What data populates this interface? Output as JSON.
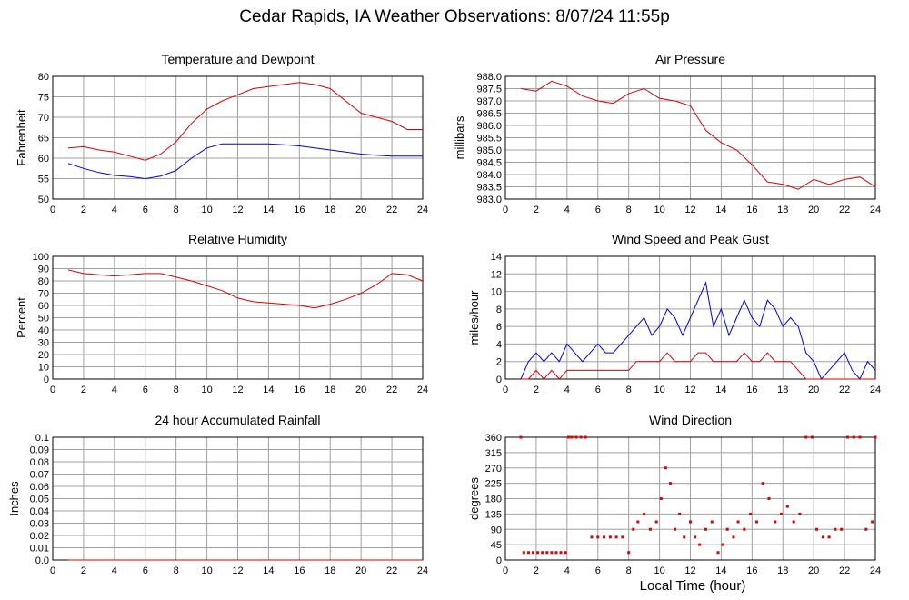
{
  "title": "Cedar Rapids, IA Weather Observations: 8/07/24 11:55p",
  "x_axis_label": "Local Time (hour)",
  "chart_data": [
    {
      "id": "temp",
      "type": "line",
      "title": "Temperature and Dewpoint",
      "ylabel": "Fahrenheit",
      "xlim": [
        0,
        24
      ],
      "ylim": [
        50,
        80
      ],
      "x_ticks": [
        0,
        2,
        4,
        6,
        8,
        10,
        12,
        14,
        16,
        18,
        20,
        22,
        24
      ],
      "y_ticks": [
        50,
        55,
        60,
        65,
        70,
        75,
        80
      ],
      "y_tick_labels": [
        "50",
        "55",
        "60",
        "65",
        "70",
        "75",
        "80"
      ],
      "grid": true,
      "series": [
        {
          "color": "#e00000",
          "x": [
            1,
            2,
            3,
            4,
            5,
            6,
            7,
            8,
            9,
            10,
            11,
            12,
            13,
            14,
            15,
            16,
            17,
            18,
            19,
            20,
            21,
            22,
            23,
            24
          ],
          "values": [
            62.5,
            62.8,
            62,
            61.5,
            60.5,
            59.5,
            61,
            64,
            68.5,
            72,
            74,
            75.5,
            77,
            77.5,
            78,
            78.5,
            78,
            77,
            74,
            71,
            70,
            69,
            67,
            67
          ]
        },
        {
          "color": "#0000e0",
          "x": [
            1,
            2,
            3,
            4,
            5,
            6,
            7,
            8,
            9,
            10,
            11,
            12,
            13,
            14,
            15,
            16,
            17,
            18,
            19,
            20,
            21,
            22,
            23,
            24
          ],
          "values": [
            58.7,
            57.5,
            56.5,
            55.8,
            55.5,
            55,
            55.6,
            57,
            60,
            62.5,
            63.5,
            63.5,
            63.5,
            63.5,
            63.3,
            63,
            62.5,
            62,
            61.5,
            61,
            60.7,
            60.5,
            60.5,
            60.5
          ]
        }
      ]
    },
    {
      "id": "pressure",
      "type": "line",
      "title": "Air Pressure",
      "ylabel": "millibars",
      "xlim": [
        0,
        24
      ],
      "ylim": [
        983.0,
        988.0
      ],
      "x_ticks": [
        0,
        2,
        4,
        6,
        8,
        10,
        12,
        14,
        16,
        18,
        20,
        22,
        24
      ],
      "y_ticks": [
        983.0,
        983.5,
        984.0,
        984.5,
        985.0,
        985.5,
        986.0,
        986.5,
        987.0,
        987.5,
        988.0
      ],
      "y_tick_labels": [
        "983.0",
        "983.5",
        "984.0",
        "984.5",
        "985.0",
        "985.5",
        "986.0",
        "986.5",
        "987.0",
        "987.5",
        "988.0"
      ],
      "grid": true,
      "series": [
        {
          "color": "#e00000",
          "x": [
            1,
            2,
            3,
            4,
            5,
            6,
            7,
            8,
            9,
            10,
            11,
            12,
            13,
            14,
            15,
            16,
            17,
            18,
            19,
            20,
            21,
            22,
            23,
            24
          ],
          "values": [
            987.5,
            987.4,
            987.8,
            987.6,
            987.2,
            987.0,
            986.9,
            987.3,
            987.5,
            987.1,
            987.0,
            986.8,
            985.8,
            985.3,
            985.0,
            984.4,
            983.7,
            983.6,
            983.4,
            983.8,
            983.6,
            983.8,
            983.9,
            983.5
          ]
        }
      ]
    },
    {
      "id": "humidity",
      "type": "line",
      "title": "Relative Humidity",
      "ylabel": "Percent",
      "xlim": [
        0,
        24
      ],
      "ylim": [
        0,
        100
      ],
      "x_ticks": [
        0,
        2,
        4,
        6,
        8,
        10,
        12,
        14,
        16,
        18,
        20,
        22,
        24
      ],
      "y_ticks": [
        0,
        10,
        20,
        30,
        40,
        50,
        60,
        70,
        80,
        90,
        100
      ],
      "y_tick_labels": [
        "0",
        "10",
        "20",
        "30",
        "40",
        "50",
        "60",
        "70",
        "80",
        "90",
        "100"
      ],
      "grid": true,
      "series": [
        {
          "color": "#e00000",
          "x": [
            1,
            2,
            3,
            4,
            5,
            6,
            7,
            8,
            9,
            10,
            11,
            12,
            13,
            14,
            15,
            16,
            17,
            18,
            19,
            20,
            21,
            22,
            23,
            24
          ],
          "values": [
            89,
            86,
            85,
            84,
            85,
            86,
            86,
            83,
            80,
            76,
            72,
            66,
            63,
            62,
            61,
            60,
            58,
            61,
            65,
            70,
            77,
            86,
            85,
            80
          ]
        }
      ]
    },
    {
      "id": "wind",
      "type": "line",
      "title": "Wind Speed and Peak Gust",
      "ylabel": "miles/hour",
      "xlim": [
        0,
        24
      ],
      "ylim": [
        0,
        14
      ],
      "x_ticks": [
        0,
        2,
        4,
        6,
        8,
        10,
        12,
        14,
        16,
        18,
        20,
        22,
        24
      ],
      "y_ticks": [
        0,
        2,
        4,
        6,
        8,
        10,
        12,
        14
      ],
      "y_tick_labels": [
        "0",
        "2",
        "4",
        "6",
        "8",
        "10",
        "12",
        "14"
      ],
      "grid": true,
      "series": [
        {
          "color": "#0000e0",
          "x": [
            1,
            1.5,
            2,
            2.5,
            3,
            3.5,
            4,
            4.5,
            5,
            5.5,
            6,
            6.5,
            7,
            7.5,
            8,
            8.5,
            9,
            9.5,
            10,
            10.5,
            11,
            11.5,
            12,
            12.5,
            13,
            13.5,
            14,
            14.5,
            15,
            15.5,
            16,
            16.5,
            17,
            17.5,
            18,
            18.5,
            19,
            19.5,
            20,
            20.5,
            21,
            21.5,
            22,
            22.5,
            23,
            23.5,
            24
          ],
          "values": [
            0,
            2,
            3,
            2,
            3,
            2,
            4,
            3,
            2,
            3,
            4,
            3,
            3,
            4,
            5,
            6,
            7,
            5,
            6,
            8,
            7,
            5,
            7,
            9,
            11,
            6,
            8,
            5,
            7,
            9,
            7,
            6,
            9,
            8,
            6,
            7,
            6,
            3,
            2,
            0,
            1,
            2,
            3,
            1,
            0,
            2,
            1
          ]
        },
        {
          "color": "#e00000",
          "x": [
            1,
            1.5,
            2,
            2.5,
            3,
            3.5,
            4,
            4.5,
            5,
            5.5,
            6,
            6.5,
            7,
            7.5,
            8,
            8.5,
            9,
            9.5,
            10,
            10.5,
            11,
            11.5,
            12,
            12.5,
            13,
            13.5,
            14,
            14.5,
            15,
            15.5,
            16,
            16.5,
            17,
            17.5,
            18,
            18.5,
            19,
            19.5,
            20,
            20.5,
            21,
            21.5,
            22,
            22.5,
            23,
            23.5,
            24
          ],
          "values": [
            0,
            0,
            1,
            0,
            1,
            0,
            1,
            1,
            1,
            1,
            1,
            1,
            1,
            1,
            1,
            2,
            2,
            2,
            2,
            3,
            2,
            2,
            2,
            3,
            3,
            2,
            2,
            2,
            2,
            3,
            2,
            2,
            3,
            2,
            2,
            2,
            1,
            0,
            0,
            0,
            0,
            0,
            0,
            0,
            0,
            0,
            0
          ]
        }
      ]
    },
    {
      "id": "rain",
      "type": "line",
      "title": "24 hour Accumulated Rainfall",
      "ylabel": "Inches",
      "xlim": [
        0,
        24
      ],
      "ylim": [
        0,
        0.1
      ],
      "x_ticks": [
        0,
        2,
        4,
        6,
        8,
        10,
        12,
        14,
        16,
        18,
        20,
        22,
        24
      ],
      "y_ticks": [
        0,
        0.01,
        0.02,
        0.03,
        0.04,
        0.05,
        0.06,
        0.07,
        0.08,
        0.09,
        0.1
      ],
      "y_tick_labels": [
        "0.0",
        "0.01",
        "0.02",
        "0.03",
        "0.04",
        "0.05",
        "0.06",
        "0.07",
        "0.08",
        "0.09",
        "0.1"
      ],
      "grid": true,
      "series": [
        {
          "color": "#e00000",
          "x": [
            1,
            24
          ],
          "values": [
            0,
            0
          ]
        }
      ]
    },
    {
      "id": "direction",
      "type": "scatter",
      "title": "Wind Direction",
      "ylabel": "degrees",
      "xlim": [
        0,
        24
      ],
      "ylim": [
        0,
        360
      ],
      "x_ticks": [
        0,
        2,
        4,
        6,
        8,
        10,
        12,
        14,
        16,
        18,
        20,
        22,
        24
      ],
      "y_ticks": [
        0,
        45,
        90,
        135,
        180,
        225,
        270,
        315,
        360
      ],
      "y_tick_labels": [
        "0",
        "45",
        "90",
        "135",
        "180",
        "225",
        "270",
        "315",
        "360"
      ],
      "grid": true,
      "series": [
        {
          "color": "#e00000",
          "x": [
            1,
            1.2,
            1.5,
            1.8,
            2.1,
            2.4,
            2.7,
            3,
            3.3,
            3.6,
            3.9,
            4.1,
            4.3,
            4.6,
            4.9,
            5.2,
            5.6,
            6,
            6.4,
            6.8,
            7.2,
            7.6,
            8,
            8.3,
            8.6,
            9,
            9.4,
            9.8,
            10.1,
            10.4,
            10.7,
            11,
            11.3,
            11.6,
            12,
            12.3,
            12.6,
            13,
            13.4,
            13.8,
            14.1,
            14.4,
            14.8,
            15.1,
            15.5,
            15.9,
            16.3,
            16.7,
            17.1,
            17.5,
            17.9,
            18.3,
            18.7,
            19.1,
            19.5,
            19.9,
            20.2,
            20.6,
            21,
            21.4,
            21.8,
            22.2,
            22.6,
            23,
            23.4,
            23.8,
            24
          ],
          "values": [
            360,
            22,
            22,
            22,
            22,
            22,
            22,
            22,
            22,
            22,
            22,
            360,
            360,
            360,
            360,
            360,
            67,
            67,
            67,
            67,
            67,
            67,
            22,
            90,
            112,
            135,
            90,
            112,
            180,
            270,
            225,
            90,
            135,
            67,
            112,
            67,
            45,
            90,
            112,
            22,
            45,
            90,
            67,
            112,
            90,
            135,
            112,
            225,
            180,
            112,
            135,
            157,
            112,
            135,
            360,
            360,
            90,
            67,
            67,
            90,
            90,
            360,
            360,
            360,
            90,
            112,
            360
          ]
        }
      ]
    }
  ]
}
